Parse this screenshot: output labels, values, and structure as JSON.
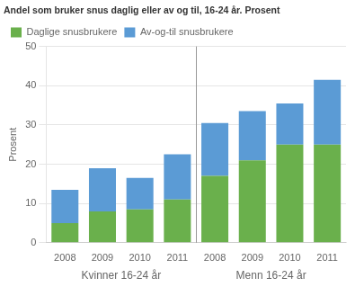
{
  "chart_data": {
    "type": "bar",
    "stacked": true,
    "title": "Andel som bruker snus daglig eller av og til, 16-24 år. Prosent",
    "ylabel": "Prosent",
    "categories": [
      "2008",
      "2009",
      "2010",
      "2011",
      "2008",
      "2009",
      "2010",
      "2011"
    ],
    "series": [
      {
        "name": "Daglige snusbrukere",
        "color": "#6ab04c",
        "values": [
          5,
          8,
          8.5,
          11,
          17,
          21,
          25,
          25
        ]
      },
      {
        "name": "Av-og-til snusbrukere",
        "color": "#5b9bd5",
        "values": [
          8.5,
          11,
          8,
          11.5,
          13.5,
          12.5,
          10.5,
          16.5
        ]
      }
    ],
    "annotations": [
      "Kvinner 16-24 år",
      "Menn 16-24 år"
    ],
    "ylim": [
      0,
      50
    ],
    "yticks": [
      0,
      10,
      20,
      30,
      40,
      50
    ],
    "grid": true,
    "legend": "upper left"
  }
}
